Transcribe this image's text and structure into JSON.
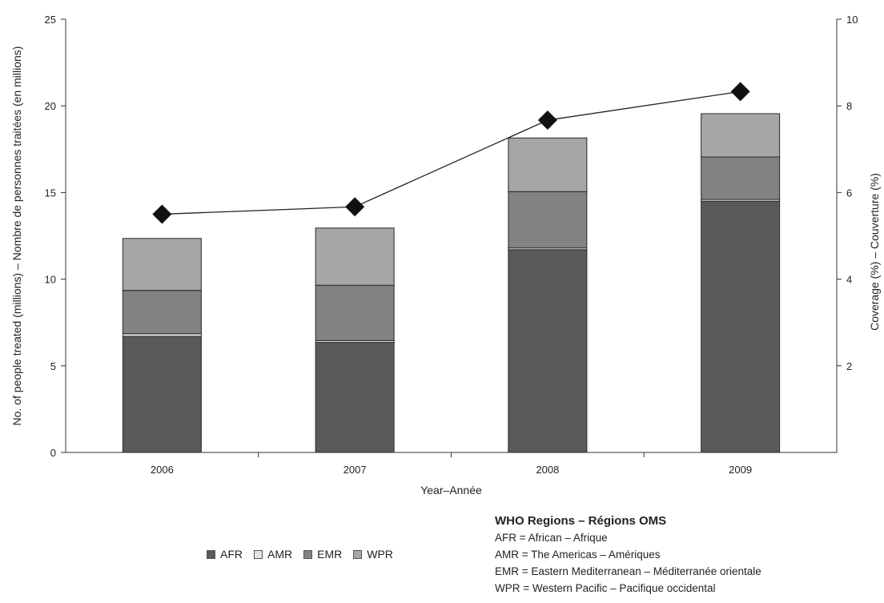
{
  "chart_data": {
    "type": "bar",
    "stacked": true,
    "categories": [
      "2006",
      "2007",
      "2008",
      "2009"
    ],
    "series": [
      {
        "name": "AFR",
        "values": [
          6.7,
          6.35,
          11.7,
          14.5
        ],
        "color": "#5a5a5c"
      },
      {
        "name": "AMR",
        "values": [
          0.15,
          0.1,
          0.1,
          0.1
        ],
        "color": "#e4e4e4"
      },
      {
        "name": "EMR",
        "values": [
          2.5,
          3.2,
          3.25,
          2.45
        ],
        "color": "#828284"
      },
      {
        "name": "WPR",
        "values": [
          3.0,
          3.3,
          3.1,
          2.5
        ],
        "color": "#a6a6a8"
      }
    ],
    "line_series": {
      "name": "Coverage (%) – Couverture (%)",
      "axis": "right",
      "values": [
        5.5,
        5.67,
        7.67,
        8.33
      ],
      "color": "#222222",
      "marker": "diamond"
    },
    "xlabel": "Year–Année",
    "ylabel": "No. of people treated (millions) – Nombre de personnes traitées (en millions)",
    "y2label": "Coverage (%) – Couverture (%)",
    "ylim": [
      0,
      25
    ],
    "y2lim": [
      0,
      10
    ],
    "yticks": [
      0,
      5,
      10,
      15,
      20,
      25
    ],
    "y2ticks": [
      2,
      4,
      6,
      8,
      10
    ],
    "grid": false,
    "legend_position": "bottom"
  },
  "legend": [
    "AFR",
    "AMR",
    "EMR",
    "WPR"
  ],
  "regions": {
    "title": "WHO Regions – Régions OMS",
    "lines": [
      "AFR = African – Afrique",
      "AMR = The Americas – Amériques",
      "EMR = Eastern Mediterranean – Méditerranée orientale",
      "WPR = Western Pacific – Pacifique occidental"
    ]
  }
}
